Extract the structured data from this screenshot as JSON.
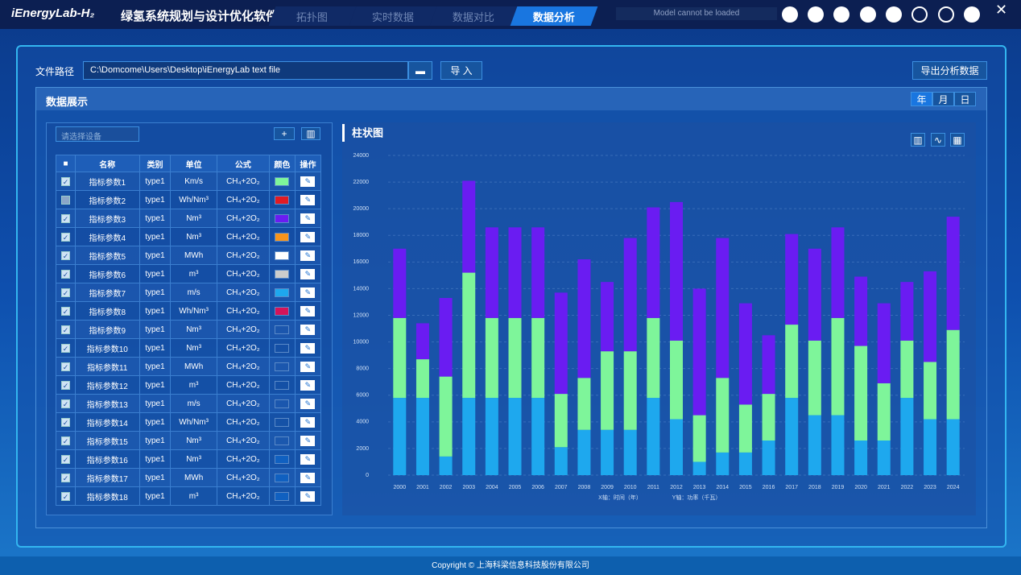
{
  "header": {
    "logo": "iEnergyLab-H₂",
    "title": "绿氢系统规划与设计优化软件",
    "tabs": [
      "拓扑图",
      "实时数据",
      "数据对比",
      "数据分析"
    ],
    "active_tab": 3,
    "status": "Model cannot be loaded"
  },
  "toolbar": {
    "path_label": "文件路径",
    "path": "C:\\Domcome\\Users\\Desktop\\iEnergyLab text file",
    "import": "导 入",
    "export": "导出分析数据"
  },
  "panel": {
    "title": "数据展示",
    "periods": [
      "年",
      "月",
      "日"
    ],
    "active_period": 0
  },
  "device": {
    "placeholder": "请选择设备"
  },
  "table": {
    "headers": [
      "名称",
      "类别",
      "单位",
      "公式",
      "颜色",
      "操作"
    ],
    "rows": [
      {
        "cells": [
          "指标参数1",
          "type1",
          "Km/s",
          "CH₄+2O₂"
        ],
        "color": "#7ef59a",
        "checked": true
      },
      {
        "cells": [
          "指标参数2",
          "type1",
          "Wh/Nm³",
          "CH₄+2O₂"
        ],
        "color": "#e01b24",
        "checked": false
      },
      {
        "cells": [
          "指标参数3",
          "type1",
          "Nm³",
          "CH₄+2O₂"
        ],
        "color": "#6a1cf2",
        "checked": true
      },
      {
        "cells": [
          "指标参数4",
          "type1",
          "Nm³",
          "CH₄+2O₂"
        ],
        "color": "#f7941d",
        "checked": true
      },
      {
        "cells": [
          "指标参数5",
          "type1",
          "MWh",
          "CH₄+2O₂"
        ],
        "color": "#ffffff",
        "checked": true
      },
      {
        "cells": [
          "指标参数6",
          "type1",
          "m³",
          "CH₄+2O₂"
        ],
        "color": "#cccccc",
        "checked": true
      },
      {
        "cells": [
          "指标参数7",
          "type1",
          "m/s",
          "CH₄+2O₂"
        ],
        "color": "#1ea8ee",
        "checked": true
      },
      {
        "cells": [
          "指标参数8",
          "type1",
          "Wh/Nm³",
          "CH₄+2O₂"
        ],
        "color": "#d4145a",
        "checked": true
      },
      {
        "cells": [
          "指标参数9",
          "type1",
          "Nm³",
          "CH₄+2O₂"
        ],
        "color": null,
        "checked": true
      },
      {
        "cells": [
          "指标参数10",
          "type1",
          "Nm³",
          "CH₄+2O₂"
        ],
        "color": null,
        "checked": true
      },
      {
        "cells": [
          "指标参数11",
          "type1",
          "MWh",
          "CH₄+2O₂"
        ],
        "color": null,
        "checked": true
      },
      {
        "cells": [
          "指标参数12",
          "type1",
          "m³",
          "CH₄+2O₂"
        ],
        "color": null,
        "checked": true
      },
      {
        "cells": [
          "指标参数13",
          "type1",
          "m/s",
          "CH₄+2O₂"
        ],
        "color": null,
        "checked": true
      },
      {
        "cells": [
          "指标参数14",
          "type1",
          "Wh/Nm³",
          "CH₄+2O₂"
        ],
        "color": null,
        "checked": true
      },
      {
        "cells": [
          "指标参数15",
          "type1",
          "Nm³",
          "CH₄+2O₂"
        ],
        "color": null,
        "checked": true
      },
      {
        "cells": [
          "指标参数16",
          "type1",
          "Nm³",
          "CH₄+2O₂"
        ],
        "color": "#1060c0",
        "checked": true
      },
      {
        "cells": [
          "指标参数17",
          "type1",
          "MWh",
          "CH₄+2O₂"
        ],
        "color": "#1060c0",
        "checked": true
      },
      {
        "cells": [
          "指标参数18",
          "type1",
          "m³",
          "CH₄+2O₂"
        ],
        "color": "#1060c0",
        "checked": true
      }
    ]
  },
  "chart_data": {
    "type": "stacked_bar",
    "title": "柱状图",
    "x_label": "X轴：时间（年）",
    "y_label": "Y轴：功率（千瓦）",
    "categories": [
      "2000",
      "2001",
      "2002",
      "2003",
      "2004",
      "2005",
      "2006",
      "2007",
      "2008",
      "2009",
      "2010",
      "2011",
      "2012",
      "2013",
      "2014",
      "2015",
      "2016",
      "2017",
      "2018",
      "2019",
      "2020",
      "2021",
      "2022",
      "2023",
      "2024"
    ],
    "series": [
      {
        "color": "#1ea8ee",
        "values": [
          5800,
          5800,
          1400,
          5800,
          5800,
          5800,
          5800,
          2100,
          3400,
          3400,
          3400,
          5800,
          4200,
          1000,
          1700,
          1700,
          2600,
          5800,
          4500,
          4500,
          2600,
          2600,
          5800,
          4200,
          4200
        ]
      },
      {
        "color": "#7ef59a",
        "values": [
          6000,
          2900,
          6000,
          9400,
          6000,
          6000,
          6000,
          4000,
          3900,
          5900,
          5900,
          6000,
          5900,
          3500,
          5600,
          3600,
          3500,
          5500,
          5600,
          7300,
          7100,
          4300,
          4300,
          4300,
          6700
        ]
      },
      {
        "color": "#6a1cf2",
        "values": [
          5200,
          2700,
          5900,
          6900,
          6800,
          6800,
          6800,
          7600,
          8900,
          5200,
          8500,
          8300,
          10400,
          9500,
          10500,
          7600,
          4400,
          6800,
          6900,
          6800,
          5200,
          6000,
          4400,
          6800,
          8500
        ]
      }
    ],
    "ylim": [
      0,
      24000
    ],
    "yticks": [
      0,
      2000,
      4000,
      6000,
      8000,
      10000,
      12000,
      14000,
      16000,
      18000,
      20000,
      22000,
      24000
    ],
    "grid": true
  },
  "footer": {
    "copyright": "Copyright © 上海科梁信息科技股份有限公司"
  }
}
